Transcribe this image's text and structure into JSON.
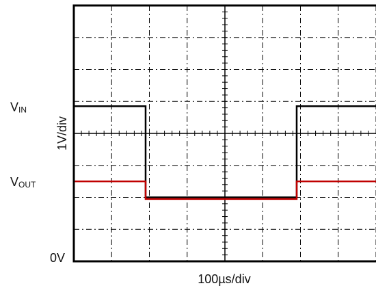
{
  "chart_data": {
    "type": "line",
    "x_label": "100µs/div",
    "y_label": "1V/div",
    "xlim": [
      0,
      800
    ],
    "ylim": [
      0,
      8
    ],
    "xticks": [
      0,
      100,
      200,
      300,
      400,
      500,
      600,
      700,
      800
    ],
    "yticks": [
      {
        "value": 0,
        "label": "0V"
      },
      1,
      2,
      3,
      4,
      5,
      6,
      7,
      8
    ],
    "grid": true,
    "series": [
      {
        "label_parts": [
          "V",
          "IN"
        ],
        "color": "#000000",
        "x": [
          0,
          190,
          190,
          590,
          590,
          800
        ],
        "values": [
          4.85,
          4.85,
          2,
          2,
          4.85,
          4.85
        ]
      },
      {
        "label_parts": [
          "V",
          "OUT"
        ],
        "color": "#c00000",
        "x": [
          0,
          190,
          190,
          590,
          590,
          800
        ],
        "values": [
          2.5,
          2.5,
          1.95,
          1.95,
          2.5,
          2.5
        ]
      }
    ]
  }
}
